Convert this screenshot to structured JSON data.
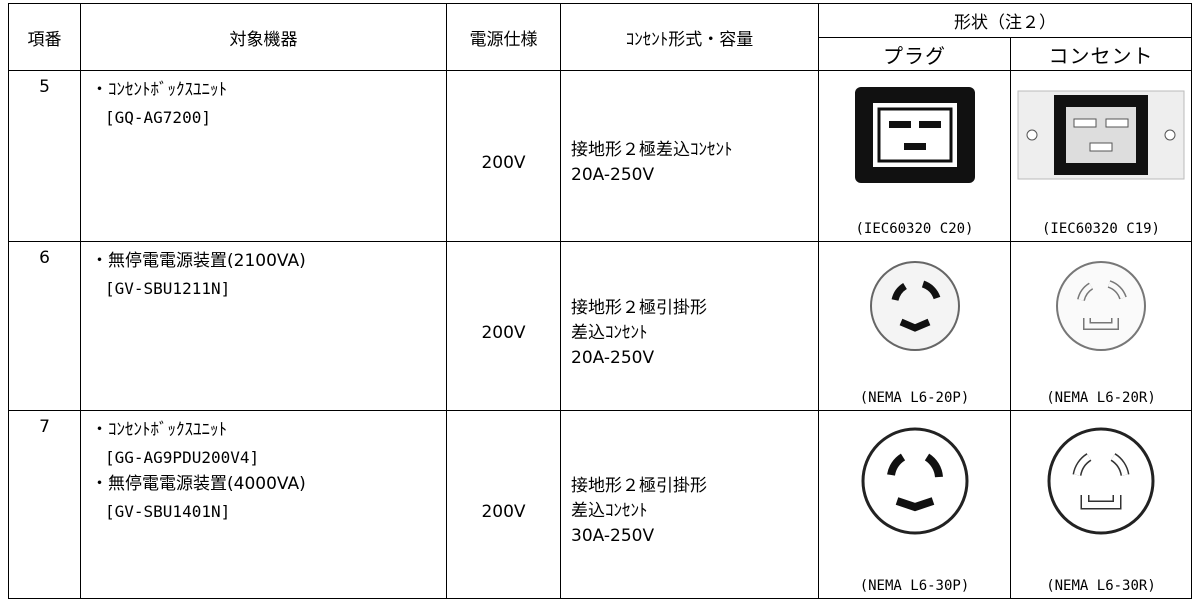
{
  "table": {
    "header": {
      "no": "項番",
      "device": "対象機器",
      "power": "電源仕様",
      "outlet": "ｺﾝｾﾝﾄ形式・容量",
      "shape": "形状（注２）",
      "plug": "プラグ",
      "receptacle": "コンセント"
    },
    "rows": [
      {
        "no": "5",
        "device": [
          "・ｺﾝｾﾝﾄﾎﾞｯｸｽﾕﾆｯﾄ",
          "[GQ-AG7200]"
        ],
        "power": "200V",
        "outlet": [
          "接地形２極差込ｺﾝｾﾝﾄ",
          "20A-250V"
        ],
        "plug": "(IEC60320 C20)",
        "receptacle": "(IEC60320 C19)"
      },
      {
        "no": "6",
        "device": [
          "・無停電電源装置(2100VA)",
          "[GV-SBU1211N]"
        ],
        "power": "200V",
        "outlet": [
          "接地形２極引掛形",
          "差込ｺﾝｾﾝﾄ",
          "20A-250V"
        ],
        "plug": "(NEMA L6-20P)",
        "receptacle": "(NEMA L6-20R)"
      },
      {
        "no": "7",
        "device": [
          "・ｺﾝｾﾝﾄﾎﾞｯｸｽﾕﾆｯﾄ",
          "[GG-AG9PDU200V4]",
          "・無停電電源装置(4000VA)",
          "[GV-SBU1401N]"
        ],
        "power": "200V",
        "outlet": [
          "接地形２極引掛形",
          "差込ｺﾝｾﾝﾄ",
          "30A-250V"
        ],
        "plug": "(NEMA L6-30P)",
        "receptacle": "(NEMA L6-30R)"
      }
    ]
  }
}
